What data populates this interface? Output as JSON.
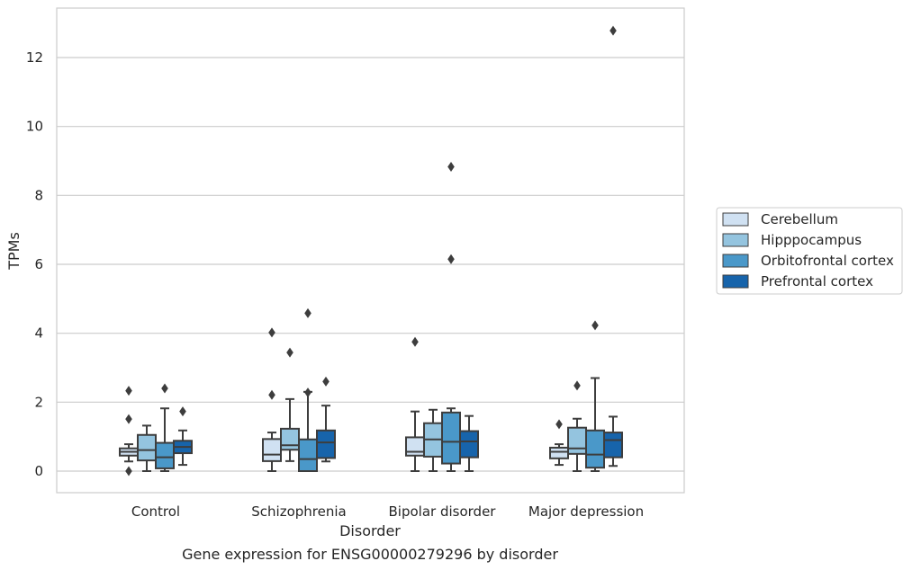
{
  "caption": "Gene expression for ENSG00000279296 by disorder",
  "chart_data": {
    "type": "box",
    "xlabel": "Disorder",
    "ylabel": "TPMs",
    "ylim": [
      -0.62,
      13.4
    ],
    "yticks": [
      0,
      2,
      4,
      6,
      8,
      10,
      12
    ],
    "grid": "horizontal",
    "legend_position": "right",
    "categories": [
      "Control",
      "Schizophrenia",
      "Bipolar disorder",
      "Major depression"
    ],
    "series": [
      {
        "name": "Cerebellum",
        "color": "#d0e1f2",
        "boxes": [
          {
            "whisker_low": 0.28,
            "q1": 0.45,
            "median": 0.56,
            "q3": 0.66,
            "whisker_high": 0.78,
            "outliers": [
              2.33,
              1.51,
              0.0
            ]
          },
          {
            "whisker_low": 0.0,
            "q1": 0.29,
            "median": 0.48,
            "q3": 0.93,
            "whisker_high": 1.12,
            "outliers": [
              4.02,
              2.21
            ]
          },
          {
            "whisker_low": 0.0,
            "q1": 0.45,
            "median": 0.56,
            "q3": 0.98,
            "whisker_high": 1.73,
            "outliers": [
              3.75
            ]
          },
          {
            "whisker_low": 0.18,
            "q1": 0.37,
            "median": 0.56,
            "q3": 0.68,
            "whisker_high": 0.78,
            "outliers": [
              1.36
            ]
          }
        ]
      },
      {
        "name": "Hipppocampus",
        "color": "#94c4df",
        "boxes": [
          {
            "whisker_low": 0.0,
            "q1": 0.31,
            "median": 0.61,
            "q3": 1.05,
            "whisker_high": 1.32,
            "outliers": []
          },
          {
            "whisker_low": 0.29,
            "q1": 0.62,
            "median": 0.75,
            "q3": 1.23,
            "whisker_high": 2.09,
            "outliers": [
              3.44
            ]
          },
          {
            "whisker_low": 0.0,
            "q1": 0.42,
            "median": 0.92,
            "q3": 1.39,
            "whisker_high": 1.78,
            "outliers": []
          },
          {
            "whisker_low": 0.0,
            "q1": 0.5,
            "median": 0.66,
            "q3": 1.26,
            "whisker_high": 1.52,
            "outliers": [
              2.48
            ]
          }
        ]
      },
      {
        "name": "Orbitofrontal cortex",
        "color": "#4a98c9",
        "boxes": [
          {
            "whisker_low": 0.0,
            "q1": 0.08,
            "median": 0.4,
            "q3": 0.82,
            "whisker_high": 1.82,
            "outliers": [
              2.4
            ]
          },
          {
            "whisker_low": 0.0,
            "q1": 0.0,
            "median": 0.35,
            "q3": 0.92,
            "whisker_high": 2.3,
            "outliers": [
              4.58,
              2.28
            ]
          },
          {
            "whisker_low": 0.0,
            "q1": 0.22,
            "median": 0.85,
            "q3": 1.7,
            "whisker_high": 1.82,
            "outliers": [
              8.83,
              6.15
            ]
          },
          {
            "whisker_low": 0.0,
            "q1": 0.1,
            "median": 0.48,
            "q3": 1.18,
            "whisker_high": 2.7,
            "outliers": [
              4.23
            ]
          }
        ]
      },
      {
        "name": "Prefrontal cortex",
        "color": "#1764ab",
        "boxes": [
          {
            "whisker_low": 0.18,
            "q1": 0.52,
            "median": 0.7,
            "q3": 0.88,
            "whisker_high": 1.18,
            "outliers": [
              1.73
            ]
          },
          {
            "whisker_low": 0.28,
            "q1": 0.38,
            "median": 0.83,
            "q3": 1.18,
            "whisker_high": 1.9,
            "outliers": [
              2.6
            ]
          },
          {
            "whisker_low": 0.0,
            "q1": 0.4,
            "median": 0.86,
            "q3": 1.16,
            "whisker_high": 1.6,
            "outliers": []
          },
          {
            "whisker_low": 0.15,
            "q1": 0.4,
            "median": 0.9,
            "q3": 1.12,
            "whisker_high": 1.58,
            "outliers": [
              12.78
            ]
          }
        ]
      }
    ]
  }
}
